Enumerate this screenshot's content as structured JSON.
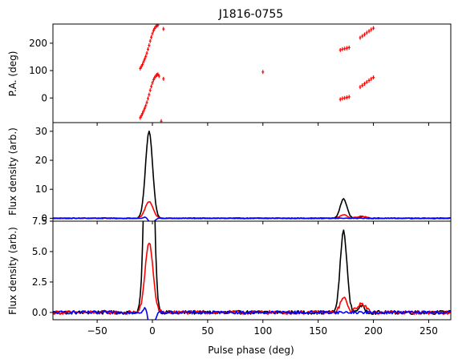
{
  "chart_data": {
    "title": "J1816-0755",
    "xlabel": "Pulse phase (deg)",
    "xlim": [
      -90,
      270
    ],
    "xticks": [
      -50,
      0,
      50,
      100,
      150,
      200,
      250
    ],
    "type": "line",
    "panels": [
      {
        "id": "pa",
        "ylabel": "P.A. (deg)",
        "ylim": [
          -90,
          270
        ],
        "yticks": [
          0,
          100,
          200
        ],
        "type": "scatter",
        "series": [
          {
            "color": "#ff0000",
            "points": [
              [
                -11,
                -72
              ],
              [
                -10,
                -65
              ],
              [
                -9,
                -57
              ],
              [
                -8,
                -48
              ],
              [
                -7,
                -38
              ],
              [
                -6,
                -28
              ],
              [
                -5,
                -16
              ],
              [
                -4,
                -2
              ],
              [
                -3,
                12
              ],
              [
                -2,
                28
              ],
              [
                -1,
                42
              ],
              [
                0,
                55
              ],
              [
                1,
                66
              ],
              [
                2,
                74
              ],
              [
                3,
                80
              ],
              [
                4,
                84
              ],
              [
                5,
                86
              ],
              [
                6,
                80
              ],
              [
                10,
                70
              ],
              [
                8,
                -85
              ],
              [
                -11,
                108
              ],
              [
                -10,
                115
              ],
              [
                -9,
                122
              ],
              [
                -8,
                132
              ],
              [
                -7,
                142
              ],
              [
                -6,
                152
              ],
              [
                -5,
                164
              ],
              [
                -4,
                178
              ],
              [
                -3,
                192
              ],
              [
                -2,
                208
              ],
              [
                -1,
                222
              ],
              [
                0,
                235
              ],
              [
                1,
                246
              ],
              [
                2,
                254
              ],
              [
                3,
                260
              ],
              [
                4,
                264
              ],
              [
                5,
                266
              ],
              [
                10,
                252
              ],
              [
                100,
                95
              ],
              [
                170,
                -5
              ],
              [
                172,
                -2
              ],
              [
                174,
                0
              ],
              [
                176,
                2
              ],
              [
                178,
                4
              ],
              [
                170,
                175
              ],
              [
                172,
                178
              ],
              [
                174,
                180
              ],
              [
                176,
                182
              ],
              [
                178,
                184
              ],
              [
                188,
                40
              ],
              [
                190,
                46
              ],
              [
                192,
                52
              ],
              [
                194,
                58
              ],
              [
                196,
                64
              ],
              [
                198,
                70
              ],
              [
                200,
                75
              ],
              [
                188,
                220
              ],
              [
                190,
                226
              ],
              [
                192,
                232
              ],
              [
                194,
                238
              ],
              [
                196,
                244
              ],
              [
                198,
                250
              ],
              [
                200,
                255
              ]
            ]
          }
        ]
      },
      {
        "id": "flux-full",
        "ylabel": "Flux density (arb.)",
        "ylim": [
          -1,
          33
        ],
        "yticks": [
          0,
          10,
          20,
          30
        ],
        "series": [
          {
            "color": "#000000",
            "peaks": [
              [
                -3,
                30,
                3.2
              ],
              [
                173,
                6.7,
                3.0
              ],
              [
                189,
                0.5,
                3
              ]
            ],
            "noise": 0.15
          },
          {
            "color": "#ff0000",
            "peaks": [
              [
                -3,
                5.8,
                3.5
              ],
              [
                173,
                1.2,
                3.0
              ],
              [
                189,
                0.7,
                4
              ]
            ],
            "noise": 0.15
          },
          {
            "color": "#0000ff",
            "peaks": [
              [
                -7,
                0.4,
                1.5
              ],
              [
                -1,
                -1.8,
                2.0
              ],
              [
                2,
                -0.4,
                1.5
              ]
            ],
            "noise": 0.12
          }
        ]
      },
      {
        "id": "flux-zoom",
        "ylabel": "Flux density (arb.)",
        "ylim": [
          -0.6,
          7.5
        ],
        "yticks": [
          0.0,
          2.5,
          5.0,
          7.5
        ],
        "series": [
          {
            "color": "#000000",
            "peaks": [
              [
                -3,
                30,
                3.2
              ],
              [
                173,
                6.7,
                3.0
              ],
              [
                189,
                0.5,
                3
              ]
            ],
            "noise": 0.15
          },
          {
            "color": "#ff0000",
            "peaks": [
              [
                -3,
                5.8,
                3.5
              ],
              [
                173,
                1.2,
                3.0
              ],
              [
                189,
                0.7,
                4
              ]
            ],
            "noise": 0.15
          },
          {
            "color": "#0000ff",
            "peaks": [
              [
                -7,
                0.4,
                1.5
              ],
              [
                -1,
                -1.8,
                2.0
              ],
              [
                2,
                -0.4,
                1.5
              ]
            ],
            "noise": 0.12
          }
        ]
      }
    ]
  }
}
